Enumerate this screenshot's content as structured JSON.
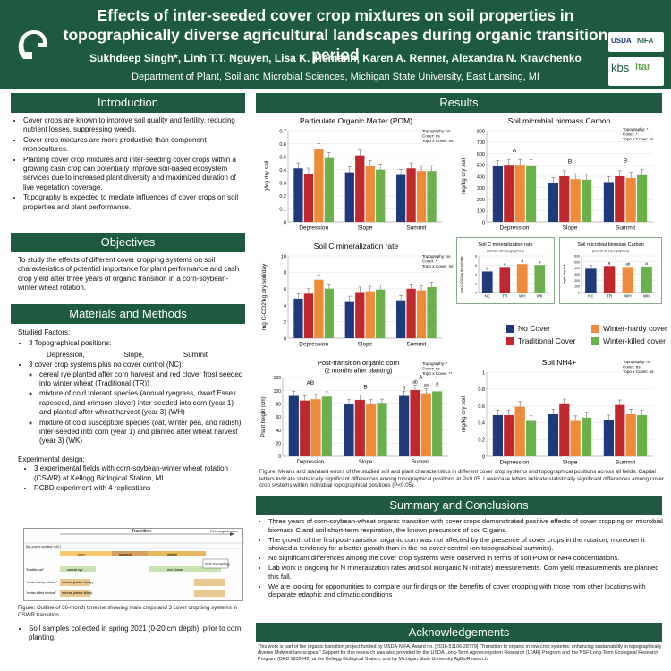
{
  "header": {
    "title": "Effects of inter-seeded cover crop mixtures on soil properties in topographically diverse agricultural landscapes during organic transition period",
    "authors": "Sukhdeep Singh*, Linh T.T. Nguyen, Lisa K. Tiemann, Karen A. Renner, Alexandra N. Kravchenko",
    "affiliation": "Department of Plant, Soil and Microbial Sciences, Michigan State University, East Lansing, MI",
    "logo_usda": "USDA",
    "logo_nifa": "NIFA",
    "logo_kbs": "kbs",
    "logo_ltar": "ltar"
  },
  "colors": {
    "green": "#1e5a3f",
    "no_cover": "#1f3a7a",
    "tr": "#c0282d",
    "wh": "#ee8a3a",
    "wk": "#6ab04c"
  },
  "intro": {
    "heading": "Introduction",
    "bullets": [
      "Cover crops are known to improve soil quality and fertility, reducing nutrient losses, suppressing weeds.",
      "Cover crop mixtures are more productive than component monocultures.",
      "Planting cover crop mixtures and inter-seeding cover crops within a growing cash crop can potentially improve soil-based ecosystem services due to increased plant diversity and maximized duration of live vegetation coverage.",
      "Topography is expected to mediate influences of cover crops on soil properties and plant performance."
    ]
  },
  "objectives": {
    "heading": "Objectives",
    "text": "To study the effects of different cover cropping systems on soil characteristics of potential importance for plant performance and cash crop yield after three years of organic transition in a corn-soybean-winter wheat rotation."
  },
  "methods": {
    "heading": "Materials and Methods",
    "studied": "Studied Factors:",
    "topo": "3 Topographical positions:",
    "positions": [
      "Depression,",
      "Slope,",
      "Summit"
    ],
    "cc": "3 cover crop systems plus no cover control (NC):",
    "cc_items": [
      "cereal rye planted after corn harvest and red clover frost seeded into winter wheat (Traditional (TR))",
      "mixture of cold tolerant species (annual ryegrass, dwarf Essex rapeseed, and crimson clover) inter-seeded into corn (year 1) and planted after wheat harvest (year 3) (WH)",
      "mixture of cold susceptible species (oat, winter pea, and radish) inter-seeded into corn (year 1) and planted after wheat harvest (year 3) (WK)"
    ],
    "design": "Experimental design:",
    "design_items": [
      "3 experimental fields with corn-soybean-winter wheat rotation (CSWR) at Kellogg Biological Station, MI",
      "RCBD experiment with 4 replications"
    ],
    "timeline_title": "Transition",
    "timeline_first_organic": "First organic corn",
    "timeline_sampling": "Soil Sampling",
    "timeline_rows": [
      "No-cover control (NC)",
      "\"traditional\"",
      "\"winter-hardy mixture\"",
      "\"winter-killed mixture\""
    ],
    "timeline_crops": [
      "corn",
      "soybean",
      "wheat",
      "cereal rye",
      "red clover",
      "mixture (winter-hardy)",
      "mixture (winter-killed)"
    ],
    "timeline_caption": "Figure: Outline of 36-month timeline showing main crops and 3 cover cropping systems in CSWR transition.",
    "sampling": "Soil samples collected in spring 2021 (0-20 cm depth), prior to corn planting."
  },
  "results": {
    "heading": "Results",
    "legend": [
      "No Cover",
      "Winter-hardy cover",
      "Traditional Cover",
      "Winter-killed cover"
    ],
    "caption": "Figure: Means and standard errors of the studied soil and plant characteristics in different cover crop systems and topographical positions across all fields. Capital letters indicate statistically significant differences among topographical positions at P<0.05. Lowercase letters indicate statistically significant differences among cover crop systems within individual topographical positions (P<0.05)."
  },
  "chart_data": [
    {
      "type": "bar",
      "title": "Particulate Organic Matter (POM)",
      "ylabel": "g/kg dry soil",
      "categories": [
        "Depression",
        "Slope",
        "Summit"
      ],
      "ylim": [
        0,
        0.7
      ],
      "yticks": [
        "0",
        "0.1",
        "0.2",
        "0.3",
        "0.4",
        "0.5",
        "0.6",
        "0.7"
      ],
      "stats": [
        "Topography: ns",
        "Cover: ns",
        "Topo x Cover: ns"
      ],
      "series": [
        {
          "name": "No Cover",
          "values": [
            0.41,
            0.38,
            0.36
          ]
        },
        {
          "name": "Traditional Cover",
          "values": [
            0.37,
            0.51,
            0.41
          ]
        },
        {
          "name": "Winter-hardy cover",
          "values": [
            0.56,
            0.43,
            0.39
          ]
        },
        {
          "name": "Winter-killed cover",
          "values": [
            0.49,
            0.4,
            0.39
          ]
        }
      ]
    },
    {
      "type": "bar",
      "title": "Soil microbial biomass Carbon",
      "ylabel": "mg/kg dry soil",
      "categories": [
        "Depression",
        "Slope",
        "Summit"
      ],
      "ylim": [
        0,
        800
      ],
      "yticks": [
        "0",
        "100",
        "200",
        "300",
        "400",
        "500",
        "600",
        "700",
        "800"
      ],
      "stats": [
        "Topography: *",
        "Cover: *",
        "Topo x Cover: ns"
      ],
      "group_letters": [
        "A",
        "B",
        "B"
      ],
      "series": [
        {
          "name": "No Cover",
          "values": [
            490,
            340,
            350
          ]
        },
        {
          "name": "Traditional Cover",
          "values": [
            500,
            400,
            400
          ]
        },
        {
          "name": "Winter-hardy cover",
          "values": [
            500,
            375,
            385
          ]
        },
        {
          "name": "Winter-killed cover",
          "values": [
            495,
            370,
            410
          ]
        }
      ]
    },
    {
      "type": "bar",
      "title": "Soil C mineralization rate",
      "ylabel": "mg C-CO2/kg dry soil/day",
      "categories": [
        "Depression",
        "Slope",
        "Summit"
      ],
      "ylim": [
        0,
        10
      ],
      "yticks": [
        "0",
        "2",
        "4",
        "6",
        "8",
        "10"
      ],
      "stats": [
        "Topography: ns",
        "Cover: *",
        "Topo x Cover: ns"
      ],
      "series": [
        {
          "name": "No Cover",
          "values": [
            4.8,
            4.5,
            4.6
          ]
        },
        {
          "name": "Traditional Cover",
          "values": [
            5.4,
            5.6,
            6.0
          ]
        },
        {
          "name": "Winter-hardy cover",
          "values": [
            7.1,
            5.7,
            5.8
          ]
        },
        {
          "name": "Winter-killed cover",
          "values": [
            6.0,
            5.9,
            6.2
          ]
        }
      ]
    },
    {
      "type": "bar",
      "title": "Soil C mineralization rate",
      "subtitle": "(across all topographies)",
      "ylabel": "mg C-CO2/kg dry soil/day",
      "categories": [
        "NC",
        "TR",
        "WH",
        "WK"
      ],
      "ylim": [
        0,
        8
      ],
      "yticks": [
        "0",
        "2",
        "4",
        "6",
        "8"
      ],
      "letters": [
        "b",
        "a",
        "a",
        "a"
      ],
      "values": [
        4.6,
        5.6,
        6.2,
        6.0
      ]
    },
    {
      "type": "bar",
      "title": "Soil microbial biomass Carbon",
      "subtitle": "(across all topographies)",
      "ylabel": "mg/kg dry soil",
      "categories": [
        "NC",
        "TR",
        "WH",
        "WK"
      ],
      "ylim": [
        0,
        600
      ],
      "yticks": [
        "0",
        "100",
        "200",
        "300",
        "400",
        "500",
        "600"
      ],
      "letters": [
        "b",
        "a",
        "ab",
        "a"
      ],
      "values": [
        390,
        435,
        420,
        425
      ]
    },
    {
      "type": "bar",
      "title": "Post-transition organic corn",
      "subtitle": "(2 months after planting)",
      "ylabel": "Plant height (cm)",
      "categories": [
        "Depression",
        "Slope",
        "Summit"
      ],
      "ylim": [
        0,
        120
      ],
      "yticks": [
        "0",
        "20",
        "40",
        "60",
        "80",
        "100",
        "120"
      ],
      "stats": [
        "Topography: *",
        "Cover: ns",
        "Topo x Cover: **"
      ],
      "group_letters": [
        "AB",
        "B",
        "A"
      ],
      "bar_letters": [
        "",
        "",
        "",
        "",
        "",
        "",
        "",
        "",
        "b",
        "ab",
        "ab",
        "a"
      ],
      "series": [
        {
          "name": "No Cover",
          "values": [
            92,
            79,
            92
          ]
        },
        {
          "name": "Traditional Cover",
          "values": [
            85,
            86,
            101
          ]
        },
        {
          "name": "Winter-hardy cover",
          "values": [
            87,
            79,
            96
          ]
        },
        {
          "name": "Winter-killed cover",
          "values": [
            91,
            80,
            99
          ]
        }
      ]
    },
    {
      "type": "bar",
      "title": "Soil NH4+",
      "ylabel": "mg/kg dry soil",
      "categories": [
        "Depression",
        "Slope",
        "Summit"
      ],
      "ylim": [
        0,
        1
      ],
      "yticks": [
        "0",
        "0.2",
        "0.4",
        "0.6",
        "0.8",
        "1"
      ],
      "stats": [
        "Topography: ns",
        "Cover: ns",
        "Topo x Cover: ns"
      ],
      "series": [
        {
          "name": "No Cover",
          "values": [
            0.49,
            0.5,
            0.43
          ]
        },
        {
          "name": "Traditional Cover",
          "values": [
            0.49,
            0.62,
            0.61
          ]
        },
        {
          "name": "Winter-hardy cover",
          "values": [
            0.59,
            0.42,
            0.5
          ]
        },
        {
          "name": "Winter-killed cover",
          "values": [
            0.42,
            0.46,
            0.49
          ]
        }
      ]
    }
  ],
  "summary": {
    "heading": "Summary and Conclusions",
    "bullets": [
      "Three years of corn-soybean-wheat organic transition with cover crops demonstrated positive effects of cover cropping on microbial biomass C and soil short-term respiration, the known precursors of soil C gains.",
      "The growth of the first post-transition organic corn was not affected by the presence of cover crops in the rotation, moreover it showed a tendency for a better growth than in the no cover control (on topographical summits).",
      "No significant differences among the cover crop systems were observed in terms of soil POM or NH4 concentrations.",
      "Lab work is ongoing for N mineralization rates and soil inorganic N (nitrate) measurements. Corn yield measurements are planned this fall.",
      "We are looking for opportunities to compare our findings on the benefits of cover cropping with those from other locations with disparate edaphic and climatic conditions ."
    ]
  },
  "ack": {
    "heading": "Acknowledgements",
    "text": "This work is part of the organic transition project funded by USDA-NIFA, Award no. [2018-51106-28779] “Transition to organic in row-crop systems: enhancing sustainability in topographically diverse Midwest landscapes.” Support for this research was also provided by the USDA Long-Term Agroecosystem Research (LTAR) Program and the NSF Long-Term Ecological Research Program (DEB 1832042) at the Kellogg Biological Station, and by Michigan State University AgBioResearch."
  }
}
